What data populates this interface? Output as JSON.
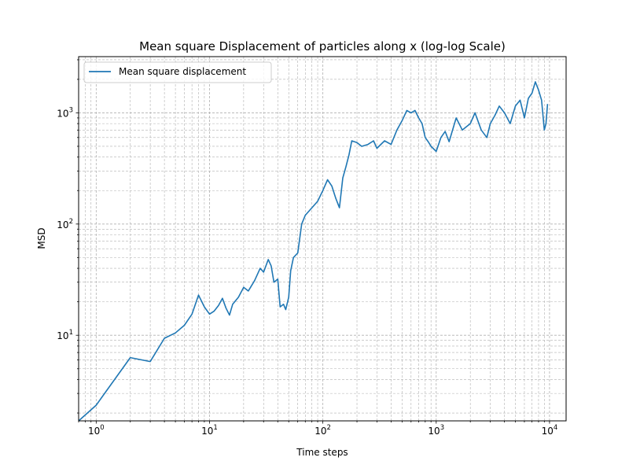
{
  "chart_data": {
    "type": "line",
    "title": "Mean square Displacement of particles along x (log-log Scale)",
    "xlabel": "Time steps",
    "ylabel": "MSD",
    "xscale": "log",
    "yscale": "log",
    "xlim": [
      0.7,
      14000
    ],
    "ylim": [
      1.7,
      3200
    ],
    "grid": true,
    "grid_which": "both",
    "legend_position": "upper-left",
    "x_ticks": [
      {
        "value": 1,
        "base": "10",
        "exp": "0"
      },
      {
        "value": 10,
        "base": "10",
        "exp": "1"
      },
      {
        "value": 100,
        "base": "10",
        "exp": "2"
      },
      {
        "value": 1000,
        "base": "10",
        "exp": "3"
      },
      {
        "value": 10000,
        "base": "10",
        "exp": "4"
      }
    ],
    "y_ticks": [
      {
        "value": 10,
        "base": "10",
        "exp": "1"
      },
      {
        "value": 100,
        "base": "10",
        "exp": "2"
      },
      {
        "value": 1000,
        "base": "10",
        "exp": "3"
      }
    ],
    "series": [
      {
        "name": "Mean square displacement",
        "color": "#1f77b4",
        "x": [
          0.7,
          1,
          2,
          3,
          4,
          5,
          6,
          7,
          8,
          9,
          10,
          11,
          12,
          13,
          14,
          15,
          16,
          18,
          20,
          22,
          25,
          28,
          30,
          33,
          35,
          37,
          40,
          42,
          45,
          47,
          50,
          52,
          55,
          60,
          65,
          70,
          80,
          90,
          100,
          110,
          120,
          130,
          140,
          150,
          160,
          170,
          180,
          200,
          220,
          250,
          280,
          300,
          350,
          400,
          450,
          500,
          550,
          600,
          650,
          700,
          750,
          800,
          850,
          900,
          1000,
          1100,
          1200,
          1300,
          1500,
          1700,
          2000,
          2200,
          2500,
          2800,
          3000,
          3300,
          3600,
          4000,
          4500,
          5000,
          5500,
          6000,
          6500,
          7000,
          7500,
          8000,
          8500,
          9000,
          9300,
          9600
        ],
        "y": [
          1.7,
          2.35,
          6.3,
          5.8,
          9.4,
          10.5,
          12.3,
          15.5,
          23,
          18,
          15.5,
          16.5,
          18.5,
          21.5,
          17.5,
          15.2,
          19,
          22,
          27,
          25,
          31,
          40,
          37,
          48,
          42,
          30,
          32,
          18,
          19,
          17,
          22,
          38,
          50,
          55,
          100,
          120,
          140,
          160,
          200,
          250,
          220,
          170,
          140,
          260,
          330,
          420,
          560,
          540,
          500,
          520,
          560,
          480,
          560,
          520,
          700,
          850,
          1050,
          1000,
          1050,
          900,
          800,
          600,
          550,
          500,
          450,
          600,
          680,
          550,
          900,
          700,
          800,
          1000,
          700,
          600,
          800,
          950,
          1150,
          1000,
          800,
          1150,
          1300,
          900,
          1350,
          1500,
          1900,
          1600,
          1300,
          700,
          800,
          1200
        ]
      }
    ]
  }
}
